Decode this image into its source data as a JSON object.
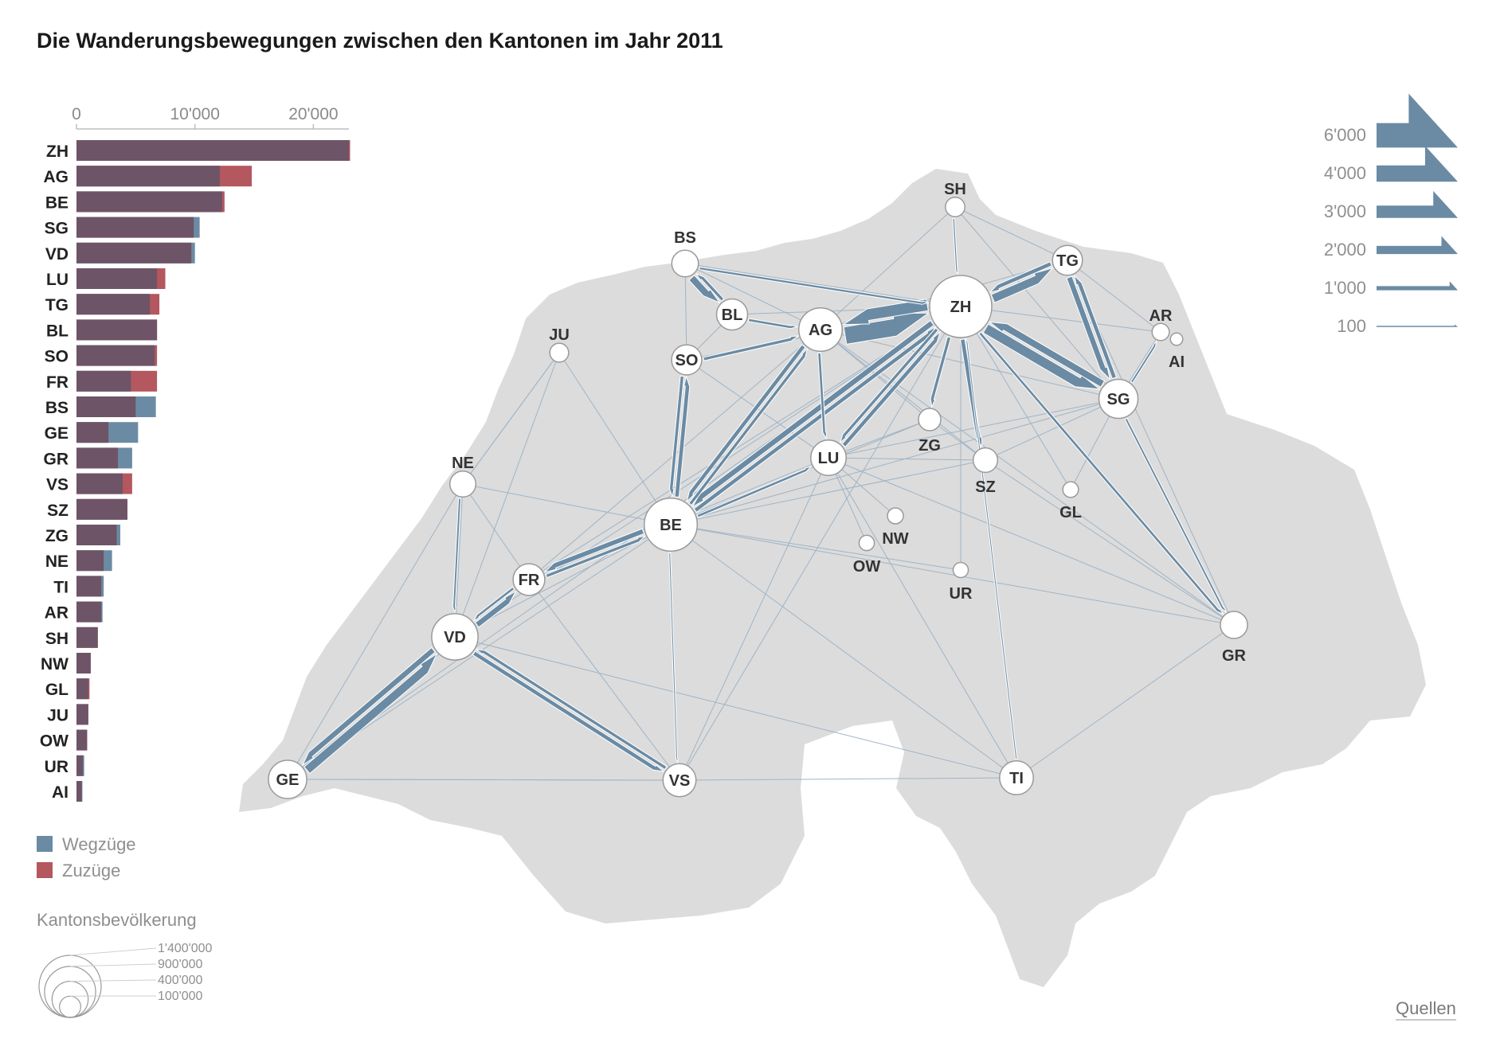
{
  "title": "Die Wanderungsbewegungen zwischen den Kantonen im Jahr 2011",
  "sources_label": "Quellen",
  "colors": {
    "wegzuege": "#6b8ba4",
    "zuzuege": "#b4575f",
    "overlap": "#6e5467",
    "map": "#dcdcdc",
    "flow": "#6b8ba4"
  },
  "chart_data": [
    {
      "type": "bar",
      "orientation": "horizontal",
      "axis_ticks": [
        "0",
        "10'000",
        "20'000"
      ],
      "xlim": [
        0,
        23000
      ],
      "categories": [
        "ZH",
        "AG",
        "BE",
        "SG",
        "VD",
        "LU",
        "TG",
        "BL",
        "SO",
        "FR",
        "BS",
        "GE",
        "GR",
        "VS",
        "SZ",
        "ZG",
        "NE",
        "TI",
        "AR",
        "SH",
        "NW",
        "GL",
        "JU",
        "OW",
        "UR",
        "AI"
      ],
      "series": [
        {
          "name": "Wegzüge",
          "values": [
            23000,
            12100,
            12300,
            10400,
            10000,
            6800,
            6200,
            6800,
            6600,
            4600,
            6700,
            5200,
            4700,
            3900,
            4300,
            3700,
            3000,
            2300,
            2200,
            1800,
            1200,
            1000,
            1000,
            900,
            650,
            500
          ]
        },
        {
          "name": "Zuzüge",
          "values": [
            23100,
            14800,
            12500,
            9900,
            9700,
            7500,
            7000,
            6800,
            6800,
            6800,
            5000,
            2700,
            3500,
            4700,
            4300,
            3400,
            2300,
            2100,
            2100,
            1800,
            1200,
            1100,
            1000,
            900,
            550,
            450
          ]
        }
      ]
    },
    {
      "type": "flow-map",
      "title": "",
      "cantons": [
        {
          "id": "ZH",
          "population": 1400000
        },
        {
          "id": "BE",
          "population": 980000
        },
        {
          "id": "VD",
          "population": 720000
        },
        {
          "id": "AG",
          "population": 620000
        },
        {
          "id": "SG",
          "population": 480000
        },
        {
          "id": "GE",
          "population": 460000
        },
        {
          "id": "LU",
          "population": 380000
        },
        {
          "id": "TI",
          "population": 340000
        },
        {
          "id": "VS",
          "population": 320000
        },
        {
          "id": "FR",
          "population": 290000
        },
        {
          "id": "BL",
          "population": 275000
        },
        {
          "id": "SO",
          "population": 255000
        },
        {
          "id": "TG",
          "population": 250000
        },
        {
          "id": "GR",
          "population": 195000
        },
        {
          "id": "BS",
          "population": 185000
        },
        {
          "id": "NE",
          "population": 173000
        },
        {
          "id": "SZ",
          "population": 147000
        },
        {
          "id": "ZG",
          "population": 115000
        },
        {
          "id": "SH",
          "population": 77000
        },
        {
          "id": "JU",
          "population": 70000
        },
        {
          "id": "AR",
          "population": 53000
        },
        {
          "id": "NW",
          "population": 41000
        },
        {
          "id": "GL",
          "population": 39000
        },
        {
          "id": "OW",
          "population": 36000
        },
        {
          "id": "UR",
          "population": 35000
        },
        {
          "id": "AI",
          "population": 16000
        }
      ],
      "flows": [
        {
          "from": "AG",
          "to": "ZH",
          "value": 6000
        },
        {
          "from": "ZH",
          "to": "AG",
          "value": 4000
        },
        {
          "from": "ZH",
          "to": "SG",
          "value": 3500
        },
        {
          "from": "SG",
          "to": "ZH",
          "value": 2500
        },
        {
          "from": "ZH",
          "to": "TG",
          "value": 3000
        },
        {
          "from": "TG",
          "to": "ZH",
          "value": 1500
        },
        {
          "from": "TG",
          "to": "SG",
          "value": 2000
        },
        {
          "from": "SG",
          "to": "TG",
          "value": 1500
        },
        {
          "from": "ZH",
          "to": "BE",
          "value": 2000
        },
        {
          "from": "BE",
          "to": "ZH",
          "value": 1500
        },
        {
          "from": "AG",
          "to": "BE",
          "value": 1500
        },
        {
          "from": "BE",
          "to": "AG",
          "value": 1200
        },
        {
          "from": "BE",
          "to": "SO",
          "value": 1500
        },
        {
          "from": "SO",
          "to": "BE",
          "value": 1200
        },
        {
          "from": "BE",
          "to": "FR",
          "value": 1800
        },
        {
          "from": "FR",
          "to": "BE",
          "value": 1200
        },
        {
          "from": "VD",
          "to": "FR",
          "value": 2000
        },
        {
          "from": "FR",
          "to": "VD",
          "value": 1000
        },
        {
          "from": "GE",
          "to": "VD",
          "value": 3000
        },
        {
          "from": "VD",
          "to": "GE",
          "value": 2000
        },
        {
          "from": "VD",
          "to": "VS",
          "value": 1500
        },
        {
          "from": "VS",
          "to": "VD",
          "value": 1200
        },
        {
          "from": "BS",
          "to": "BL",
          "value": 2500
        },
        {
          "from": "BL",
          "to": "BS",
          "value": 1200
        },
        {
          "from": "BL",
          "to": "AG",
          "value": 1000
        },
        {
          "from": "SO",
          "to": "AG",
          "value": 1200
        },
        {
          "from": "BE",
          "to": "LU",
          "value": 1000
        },
        {
          "from": "LU",
          "to": "ZH",
          "value": 1500
        },
        {
          "from": "ZH",
          "to": "LU",
          "value": 1200
        },
        {
          "from": "AG",
          "to": "LU",
          "value": 1000
        },
        {
          "from": "ZH",
          "to": "SZ",
          "value": 1500
        },
        {
          "from": "ZH",
          "to": "ZG",
          "value": 1200
        },
        {
          "from": "ZH",
          "to": "GR",
          "value": 1000
        },
        {
          "from": "SG",
          "to": "GR",
          "value": 800
        },
        {
          "from": "SG",
          "to": "AR",
          "value": 800
        },
        {
          "from": "NE",
          "to": "VD",
          "value": 800
        },
        {
          "from": "BS",
          "to": "ZH",
          "value": 900
        },
        {
          "from": "SH",
          "to": "ZH",
          "value": 600
        },
        {
          "from": "TI",
          "to": "ZH",
          "value": 500
        },
        {
          "from": "BE",
          "to": "VS",
          "value": 500
        }
      ],
      "node_scale_labels": [
        "1'400'000",
        "900'000",
        "400'000",
        "100'000"
      ],
      "node_scale_values": [
        1400000,
        900000,
        400000,
        100000
      ],
      "arrow_scale_labels": [
        "6'000",
        "4'000",
        "3'000",
        "2'000",
        "1'000",
        "100"
      ],
      "arrow_scale_values": [
        6000,
        4000,
        3000,
        2000,
        1000,
        100
      ]
    }
  ],
  "legend": {
    "wegzuege": "Wegzüge",
    "zuzuege": "Zuzüge",
    "population_title": "Kantonsbevölkerung"
  }
}
